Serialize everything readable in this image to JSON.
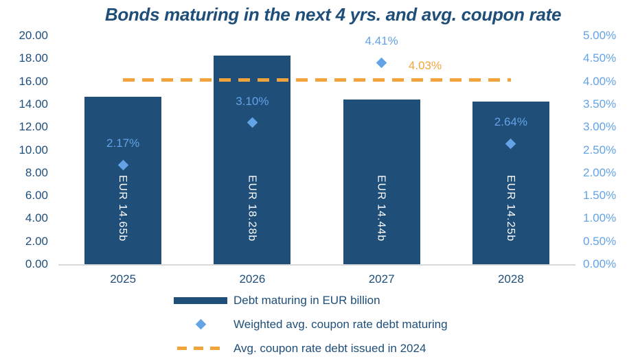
{
  "chart_data": {
    "type": "bar",
    "title": "Bonds maturing in the next 4 yrs. and avg. coupon rate",
    "categories": [
      "2025",
      "2026",
      "2027",
      "2028"
    ],
    "series": [
      {
        "name": "Debt maturing in EUR billion",
        "type": "bar",
        "axis": "left",
        "values": [
          14.65,
          18.28,
          14.44,
          14.25
        ],
        "data_labels": [
          "EUR 14.65b",
          "EUR 18.28b",
          "EUR 14.44b",
          "EUR 14.25b"
        ]
      },
      {
        "name": "Weighted avg. coupon rate debt maturing",
        "type": "scatter",
        "marker": "diamond",
        "axis": "right",
        "values": [
          2.17,
          3.1,
          4.41,
          2.64
        ],
        "data_labels": [
          "2.17%",
          "3.10%",
          "4.41%",
          "2.64%"
        ]
      },
      {
        "name": "Avg. coupon rate debt issued in 2024",
        "type": "line",
        "line_style": "dashed",
        "axis": "right",
        "value": 4.03,
        "data_label": "4.03%"
      }
    ],
    "left_axis": {
      "min": 0,
      "max": 20,
      "step": 2,
      "tick_labels": [
        "0.00",
        "2.00",
        "4.00",
        "6.00",
        "8.00",
        "10.00",
        "12.00",
        "14.00",
        "16.00",
        "18.00",
        "20.00"
      ]
    },
    "right_axis": {
      "min": 0,
      "max": 5,
      "step": 0.5,
      "tick_labels": [
        "0.00%",
        "0.50%",
        "1.00%",
        "1.50%",
        "2.00%",
        "2.50%",
        "3.00%",
        "3.50%",
        "4.00%",
        "4.50%",
        "5.00%"
      ]
    },
    "legend_position": "bottom",
    "grid": false,
    "colors": {
      "bar": "#1F4E79",
      "marker": "#63A3E6",
      "dashed_line": "#F1A43C",
      "title_text": "#1F4E79",
      "left_axis_text": "#1F4E79",
      "right_axis_text": "#63A3E6",
      "category_text": "#1F4E79",
      "bar_label_text": "#FFFFFF",
      "legend_text": "#1F4E79",
      "axis_line": "#D9D9D9"
    }
  }
}
